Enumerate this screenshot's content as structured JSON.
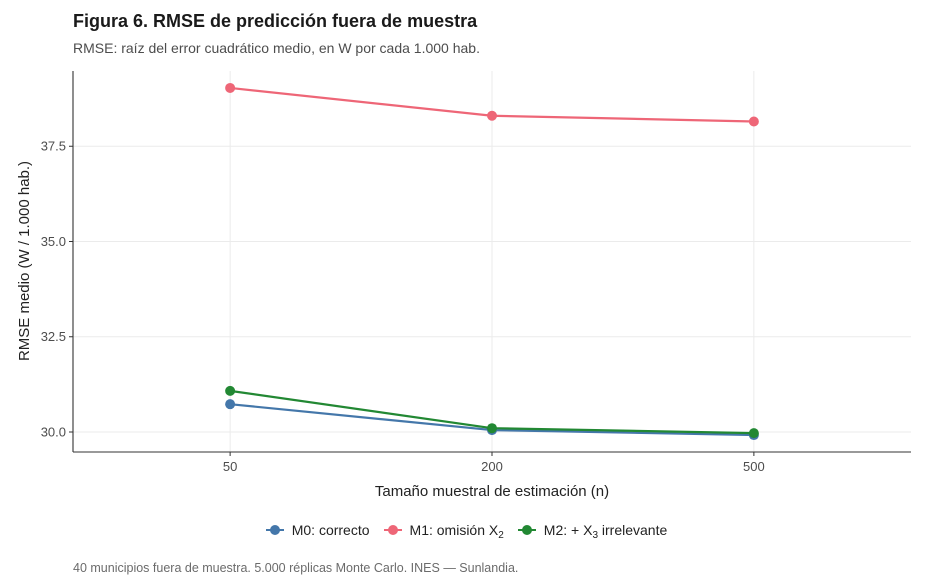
{
  "title": "Figura 6. RMSE de predicción fuera de muestra",
  "subtitle": "RMSE: raíz del error cuadrático medio, en W por cada 1.000 hab.",
  "caption": "40 municipios fuera de muestra. 5.000 réplicas Monte Carlo. INES — Sunlandia.",
  "legend": [
    {
      "prefix": "M0: correcto",
      "sub": "",
      "suffix": "",
      "color": "#4477AA"
    },
    {
      "prefix": "M1: omisión X",
      "sub": "2",
      "suffix": "",
      "color": "#EE6677"
    },
    {
      "prefix": "M2: + X",
      "sub": "3",
      "suffix": " irrelevante",
      "color": "#228833"
    }
  ],
  "chart_data": {
    "type": "line",
    "title": "Figura 6. RMSE de predicción fuera de muestra",
    "subtitle": "RMSE: raíz del error cuadrático medio, en W por cada 1.000 hab.",
    "xlabel": "Tamaño muestral de estimación (n)",
    "ylabel": "RMSE medio (W / 1.000 hab.)",
    "categories": [
      "50",
      "200",
      "500"
    ],
    "ylim": [
      29.475,
      39.475
    ],
    "yticks": [
      30.0,
      32.5,
      35.0,
      37.5
    ],
    "ytick_labels": [
      "30.0",
      "32.5",
      "35.0",
      "37.5"
    ],
    "grid": true,
    "legend_position": "bottom",
    "series": [
      {
        "name": "M0: correcto",
        "color": "#4477AA",
        "values": [
          30.73,
          30.05,
          29.92
        ]
      },
      {
        "name": "M1: omisión X2",
        "color": "#EE6677",
        "values": [
          39.03,
          38.3,
          38.15
        ]
      },
      {
        "name": "M2: + X3 irrelevante",
        "color": "#228833",
        "values": [
          31.08,
          30.1,
          29.97
        ]
      }
    ]
  }
}
